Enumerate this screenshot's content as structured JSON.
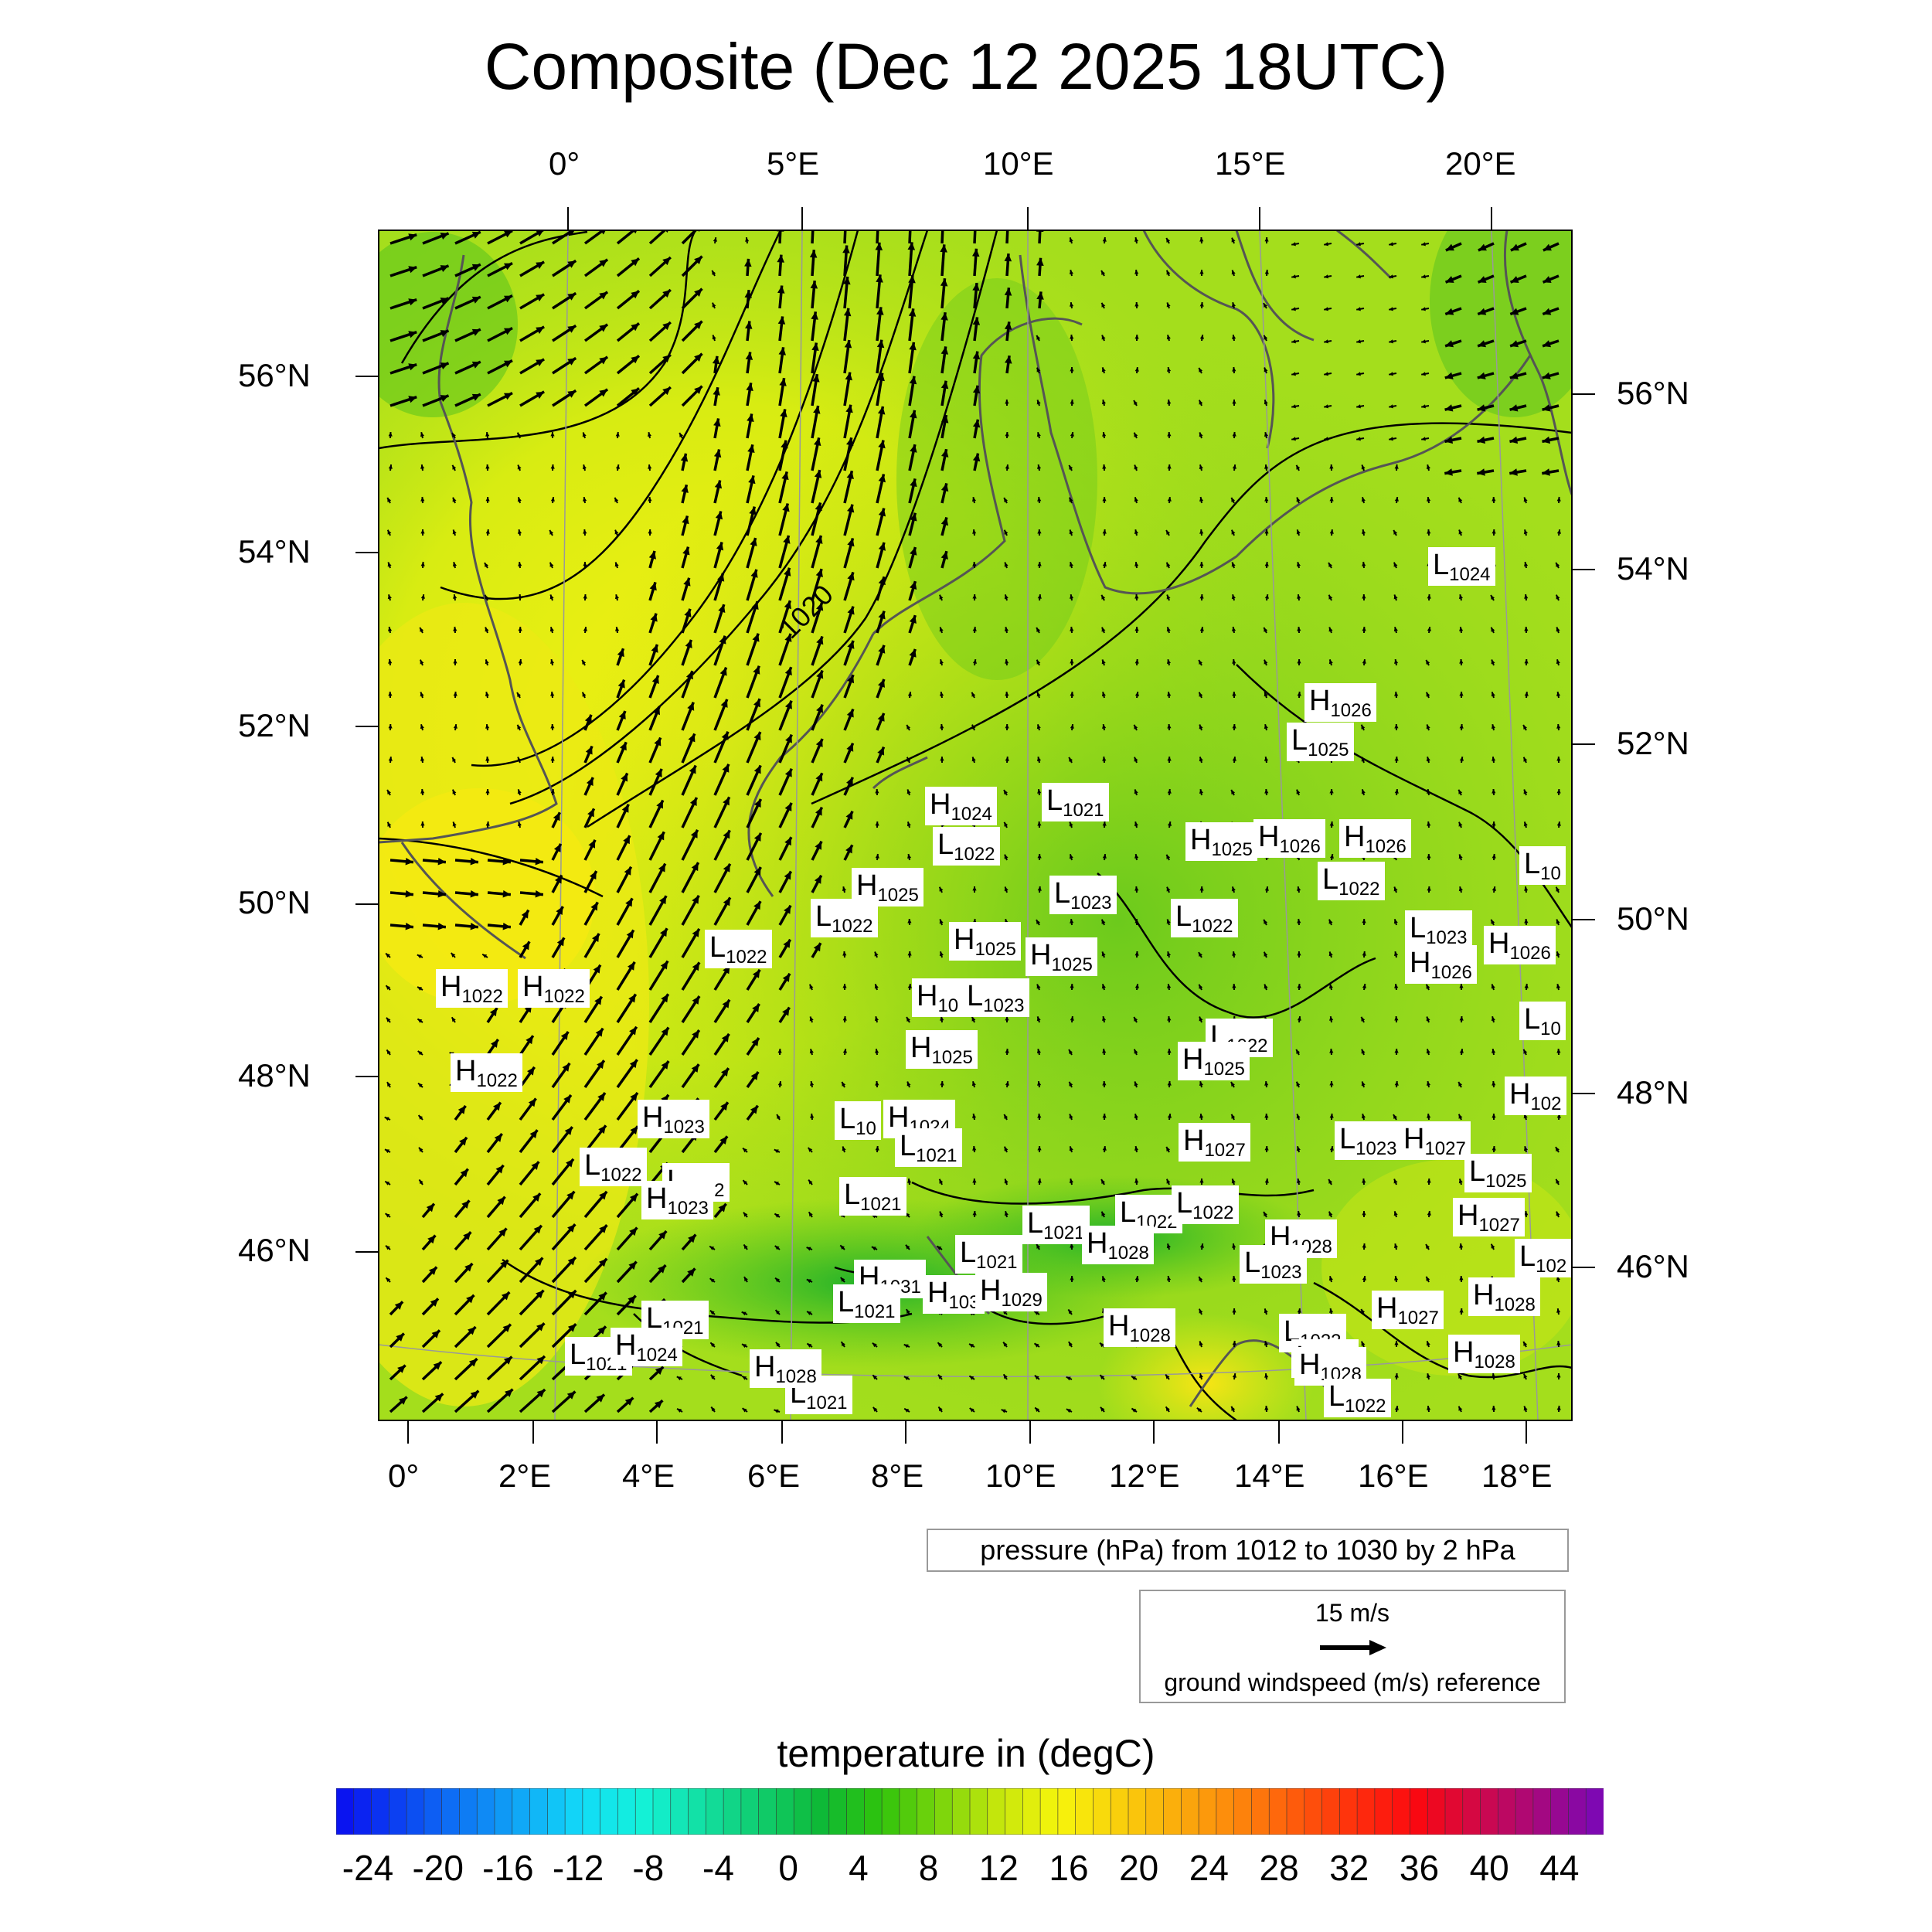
{
  "title": "Composite (Dec 12 2025 18UTC)",
  "top_axis_labels": [
    "0°",
    "5°E",
    "10°E",
    "15°E",
    "20°E"
  ],
  "bottom_axis_labels": [
    "0°",
    "2°E",
    "4°E",
    "6°E",
    "8°E",
    "10°E",
    "12°E",
    "14°E",
    "16°E",
    "18°E"
  ],
  "left_axis_labels": [
    "56°N",
    "54°N",
    "52°N",
    "50°N",
    "48°N",
    "46°N"
  ],
  "right_axis_labels": [
    "56°N",
    "54°N",
    "52°N",
    "50°N",
    "48°N",
    "46°N"
  ],
  "contour_label": "1020",
  "pressure_note": "pressure (hPa) from 1012 to 1030 by 2 hPa",
  "wind_reference": {
    "speed": "15 m/s",
    "description": "ground windspeed (m/s) reference"
  },
  "colorbar": {
    "title": "temperature in (degC)",
    "labels": [
      "-24",
      "-20",
      "-16",
      "-12",
      "-8",
      "-4",
      "0",
      "4",
      "8",
      "12",
      "16",
      "20",
      "24",
      "28",
      "32",
      "36",
      "40",
      "44"
    ],
    "colors": [
      "#0a14f0",
      "#0c46f2",
      "#0e78f4",
      "#10aaf6",
      "#12dcf8",
      "#14f2d8",
      "#12dfa2",
      "#10cc6c",
      "#0eb936",
      "#2fc30c",
      "#7bd50c",
      "#c7e70c",
      "#f7f50c",
      "#f9d00c",
      "#fbab0c",
      "#fd860c",
      "#fe5a0c",
      "#fe2e0c",
      "#fb0810",
      "#d20846",
      "#a8087c",
      "#7e08b2"
    ]
  },
  "pressure_centers": [
    {
      "type": "L",
      "value": "1024"
    },
    {
      "type": "H",
      "value": "1026"
    },
    {
      "type": "L",
      "value": "1025"
    },
    {
      "type": "H",
      "value": "1024"
    },
    {
      "type": "L",
      "value": "1021"
    },
    {
      "type": "L",
      "value": "1022"
    },
    {
      "type": "H",
      "value": "1025"
    },
    {
      "type": "H",
      "value": "1026"
    },
    {
      "type": "H",
      "value": "1026"
    },
    {
      "type": "L",
      "value": "10"
    },
    {
      "type": "H",
      "value": "1025"
    },
    {
      "type": "L",
      "value": "1022"
    },
    {
      "type": "L",
      "value": "1022"
    },
    {
      "type": "L",
      "value": "1023"
    },
    {
      "type": "L",
      "value": "1022"
    },
    {
      "type": "L",
      "value": "1022"
    },
    {
      "type": "H",
      "value": "1025"
    },
    {
      "type": "H",
      "value": "1025"
    },
    {
      "type": "L",
      "value": "1023"
    },
    {
      "type": "H",
      "value": "1026"
    },
    {
      "type": "H",
      "value": "1026"
    },
    {
      "type": "H",
      "value": "1022"
    },
    {
      "type": "H",
      "value": "1022"
    },
    {
      "type": "H",
      "value": "10"
    },
    {
      "type": "L",
      "value": "1023"
    },
    {
      "type": "L",
      "value": "10"
    },
    {
      "type": "H",
      "value": "1025"
    },
    {
      "type": "L",
      "value": "1022"
    },
    {
      "type": "H",
      "value": "1025"
    },
    {
      "type": "H",
      "value": "1022"
    },
    {
      "type": "H",
      "value": "102"
    },
    {
      "type": "H",
      "value": "1023"
    },
    {
      "type": "L",
      "value": "10"
    },
    {
      "type": "H",
      "value": "1024"
    },
    {
      "type": "L",
      "value": "1021"
    },
    {
      "type": "H",
      "value": "1027"
    },
    {
      "type": "L",
      "value": "1023"
    },
    {
      "type": "H",
      "value": "1027"
    },
    {
      "type": "L",
      "value": "1022"
    },
    {
      "type": "L",
      "value": "1022"
    },
    {
      "type": "H",
      "value": "1023"
    },
    {
      "type": "L",
      "value": "1025"
    },
    {
      "type": "L",
      "value": "1021"
    },
    {
      "type": "L",
      "value": "1022"
    },
    {
      "type": "L",
      "value": "1022"
    },
    {
      "type": "L",
      "value": "1021"
    },
    {
      "type": "H",
      "value": "1028"
    },
    {
      "type": "H",
      "value": "1028"
    },
    {
      "type": "H",
      "value": "1027"
    },
    {
      "type": "L",
      "value": "1021"
    },
    {
      "type": "L",
      "value": "1023"
    },
    {
      "type": "L",
      "value": "102"
    },
    {
      "type": "H",
      "value": "1031"
    },
    {
      "type": "H",
      "value": "103"
    },
    {
      "type": "H",
      "value": "1029"
    },
    {
      "type": "L",
      "value": "1021"
    },
    {
      "type": "L",
      "value": "1021"
    },
    {
      "type": "H",
      "value": "1027"
    },
    {
      "type": "H",
      "value": "1028"
    },
    {
      "type": "H",
      "value": "1028"
    },
    {
      "type": "L",
      "value": "1022"
    },
    {
      "type": "L",
      "value": "1021"
    },
    {
      "type": "H",
      "value": "1024"
    },
    {
      "type": "L",
      "value": "1021"
    },
    {
      "type": "H",
      "value": "1028"
    },
    {
      "type": "H",
      "value": "1028"
    },
    {
      "type": "L",
      "value": "1021"
    },
    {
      "type": "H",
      "value": "1028"
    },
    {
      "type": "L",
      "value": "1022"
    }
  ]
}
